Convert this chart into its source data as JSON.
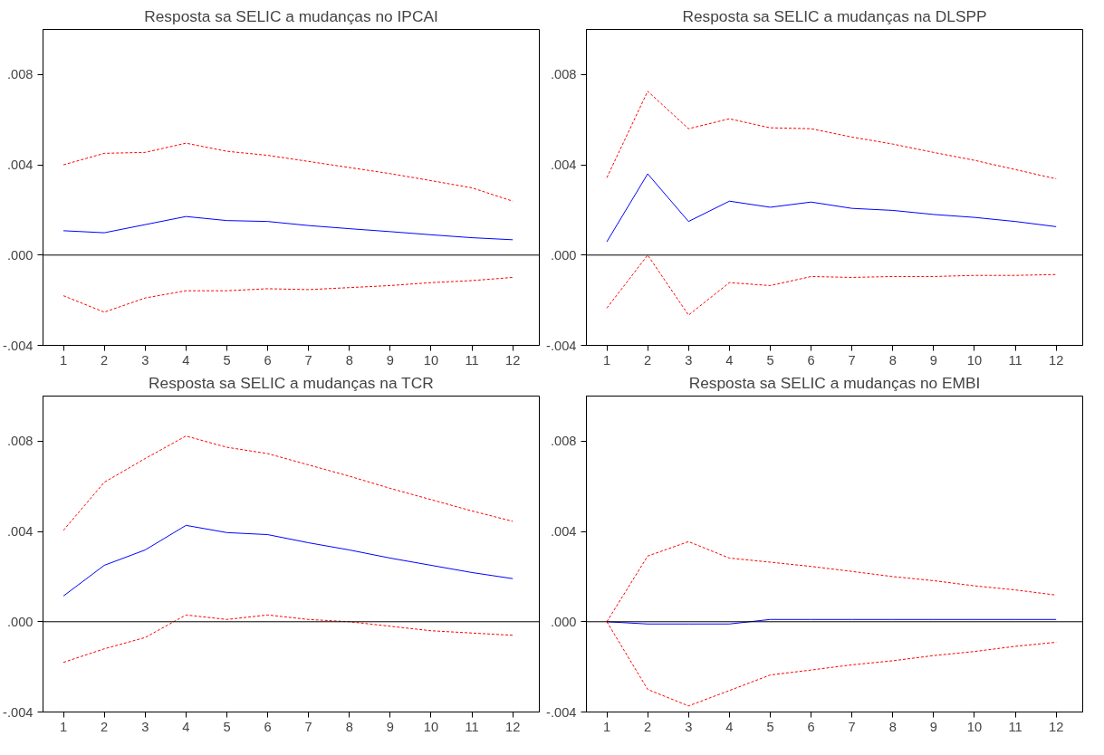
{
  "chart_data": [
    {
      "type": "line",
      "title": "Resposta sa SELIC a mudanças no IPCAI",
      "x": [
        1,
        2,
        3,
        4,
        5,
        6,
        7,
        8,
        9,
        10,
        11,
        12
      ],
      "xlim": [
        0.5,
        12.65
      ],
      "xticks": [
        1,
        2,
        3,
        4,
        5,
        6,
        7,
        8,
        9,
        10,
        11,
        12
      ],
      "ylim": [
        -0.004,
        0.01
      ],
      "yticks": [
        {
          "value": -0.004,
          "label": "-.004"
        },
        {
          "value": 0.0,
          "label": ".000"
        },
        {
          "value": 0.004,
          "label": ".004"
        },
        {
          "value": 0.008,
          "label": ".008"
        }
      ],
      "grid": false,
      "ref_lines": [
        {
          "axis": "y",
          "value": 0.0,
          "color": "#000000"
        }
      ],
      "series": [
        {
          "color": "#0000ff",
          "line_style": "solid",
          "values": [
            0.00108,
            0.00099,
            0.00135,
            0.00171,
            0.00153,
            0.00149,
            0.00131,
            0.00117,
            0.00104,
            0.0009,
            0.00077,
            0.00068
          ]
        },
        {
          "color": "#ff0000",
          "line_style": "dashed",
          "values": [
            0.004,
            0.00451,
            0.00455,
            0.00496,
            0.0046,
            0.00442,
            0.00415,
            0.00388,
            0.00361,
            0.0033,
            0.00298,
            0.00239
          ]
        },
        {
          "color": "#ff0000",
          "line_style": "dashed",
          "values": [
            -0.0018,
            -0.00253,
            -0.0019,
            -0.00158,
            -0.00158,
            -0.00149,
            -0.00153,
            -0.00144,
            -0.00135,
            -0.00122,
            -0.00113,
            -0.00099
          ]
        }
      ]
    },
    {
      "type": "line",
      "title": "Resposta sa SELIC a mudanças na DLSPP",
      "x": [
        1,
        2,
        3,
        4,
        5,
        6,
        7,
        8,
        9,
        10,
        11,
        12
      ],
      "xlim": [
        0.5,
        12.65
      ],
      "xticks": [
        1,
        2,
        3,
        4,
        5,
        6,
        7,
        8,
        9,
        10,
        11,
        12
      ],
      "ylim": [
        -0.004,
        0.01
      ],
      "yticks": [
        {
          "value": -0.004,
          "label": "-.004"
        },
        {
          "value": 0.0,
          "label": ".000"
        },
        {
          "value": 0.004,
          "label": ".004"
        },
        {
          "value": 0.008,
          "label": ".008"
        }
      ],
      "grid": false,
      "ref_lines": [
        {
          "axis": "y",
          "value": 0.0,
          "color": "#000000"
        }
      ],
      "series": [
        {
          "color": "#0000ff",
          "line_style": "solid",
          "values": [
            0.00059,
            0.0036,
            0.00149,
            0.00239,
            0.00212,
            0.00235,
            0.00207,
            0.00198,
            0.0018,
            0.00167,
            0.00149,
            0.00126
          ]
        },
        {
          "color": "#ff0000",
          "line_style": "dashed",
          "values": [
            0.00343,
            0.00726,
            0.0056,
            0.00604,
            0.00564,
            0.0056,
            0.00523,
            0.00492,
            0.00455,
            0.0042,
            0.00379,
            0.00338
          ]
        },
        {
          "color": "#ff0000",
          "line_style": "dashed",
          "values": [
            -0.00235,
            0.0,
            -0.00266,
            -0.00122,
            -0.00135,
            -0.00095,
            -0.00099,
            -0.00095,
            -0.00095,
            -0.0009,
            -0.0009,
            -0.00086
          ]
        }
      ]
    },
    {
      "type": "line",
      "title": "Resposta sa SELIC a mudanças na TCR",
      "x": [
        1,
        2,
        3,
        4,
        5,
        6,
        7,
        8,
        9,
        10,
        11,
        12
      ],
      "xlim": [
        0.5,
        12.65
      ],
      "xticks": [
        1,
        2,
        3,
        4,
        5,
        6,
        7,
        8,
        9,
        10,
        11,
        12
      ],
      "ylim": [
        -0.004,
        0.01
      ],
      "yticks": [
        {
          "value": -0.004,
          "label": "-.004"
        },
        {
          "value": 0.0,
          "label": ".000"
        },
        {
          "value": 0.004,
          "label": ".004"
        },
        {
          "value": 0.008,
          "label": ".008"
        }
      ],
      "grid": false,
      "ref_lines": [
        {
          "axis": "y",
          "value": 0.0,
          "color": "#000000"
        }
      ],
      "series": [
        {
          "color": "#0000ff",
          "line_style": "solid",
          "values": [
            0.00114,
            0.0025,
            0.00318,
            0.00427,
            0.00395,
            0.00386,
            0.0035,
            0.00318,
            0.00282,
            0.0025,
            0.00218,
            0.00191
          ]
        },
        {
          "color": "#ff0000",
          "line_style": "dashed",
          "values": [
            0.00405,
            0.00618,
            0.00723,
            0.00823,
            0.00773,
            0.00745,
            0.00695,
            0.00645,
            0.00591,
            0.00541,
            0.00491,
            0.00445
          ]
        },
        {
          "color": "#ff0000",
          "line_style": "dashed",
          "values": [
            -0.0018,
            -0.0012,
            -0.0007,
            0.0003,
            0.0001,
            0.0003,
            0.0001,
            0.0,
            -0.0002,
            -0.0004,
            -0.0005,
            -0.0006
          ]
        }
      ]
    },
    {
      "type": "line",
      "title": "Resposta sa SELIC a mudanças no EMBI",
      "x": [
        1,
        2,
        3,
        4,
        5,
        6,
        7,
        8,
        9,
        10,
        11,
        12
      ],
      "xlim": [
        0.5,
        12.65
      ],
      "xticks": [
        1,
        2,
        3,
        4,
        5,
        6,
        7,
        8,
        9,
        10,
        11,
        12
      ],
      "ylim": [
        -0.004,
        0.01
      ],
      "yticks": [
        {
          "value": -0.004,
          "label": "-.004"
        },
        {
          "value": 0.0,
          "label": ".000"
        },
        {
          "value": 0.004,
          "label": ".004"
        },
        {
          "value": 0.008,
          "label": ".008"
        }
      ],
      "grid": false,
      "ref_lines": [
        {
          "axis": "y",
          "value": 0.0,
          "color": "#000000"
        }
      ],
      "series": [
        {
          "color": "#0000ff",
          "line_style": "solid",
          "values": [
            0.0,
            -0.0001,
            -0.0001,
            -0.0001,
            0.0001,
            0.0001,
            0.0001,
            0.0001,
            0.0001,
            0.0001,
            0.0001,
            0.0001
          ]
        },
        {
          "color": "#ff0000",
          "line_style": "dashed",
          "values": [
            0.0,
            0.00291,
            0.00355,
            0.00282,
            0.00264,
            0.00245,
            0.00223,
            0.002,
            0.00182,
            0.00159,
            0.00141,
            0.00118
          ]
        },
        {
          "color": "#ff0000",
          "line_style": "dashed",
          "values": [
            0.0,
            -0.003,
            -0.00373,
            -0.00305,
            -0.00236,
            -0.00214,
            -0.00191,
            -0.00173,
            -0.0015,
            -0.00132,
            -0.00109,
            -0.00091
          ]
        }
      ]
    }
  ]
}
